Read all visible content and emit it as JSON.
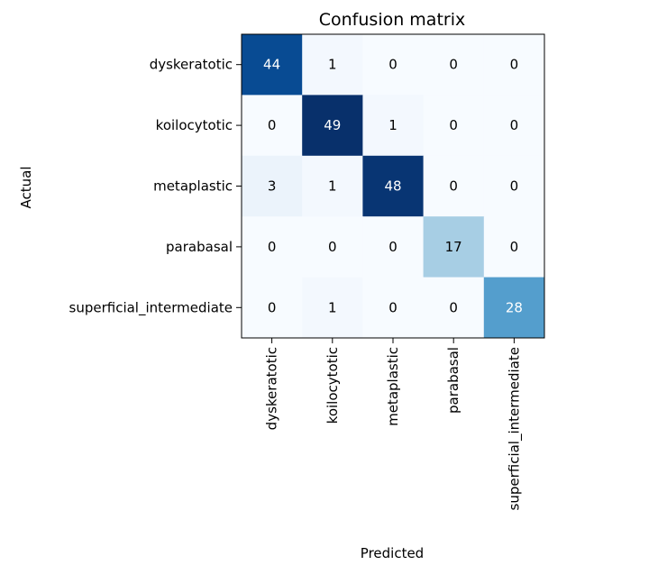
{
  "chart_data": {
    "type": "heatmap",
    "title": "Confusion matrix",
    "xlabel": "Predicted",
    "ylabel": "Actual",
    "x_categories": [
      "dyskeratotic",
      "koilocytotic",
      "metaplastic",
      "parabasal",
      "superficial_intermediate"
    ],
    "y_categories": [
      "dyskeratotic",
      "koilocytotic",
      "metaplastic",
      "parabasal",
      "superficial_intermediate"
    ],
    "values": [
      [
        44,
        1,
        0,
        0,
        0
      ],
      [
        0,
        49,
        1,
        0,
        0
      ],
      [
        3,
        1,
        48,
        0,
        0
      ],
      [
        0,
        0,
        0,
        17,
        0
      ],
      [
        0,
        1,
        0,
        0,
        28
      ]
    ],
    "colormap": "Blues",
    "colors": {
      "low": "#f7fbff",
      "high": "#08306b",
      "text_dark": "#000000",
      "text_light": "#ffffff"
    }
  }
}
